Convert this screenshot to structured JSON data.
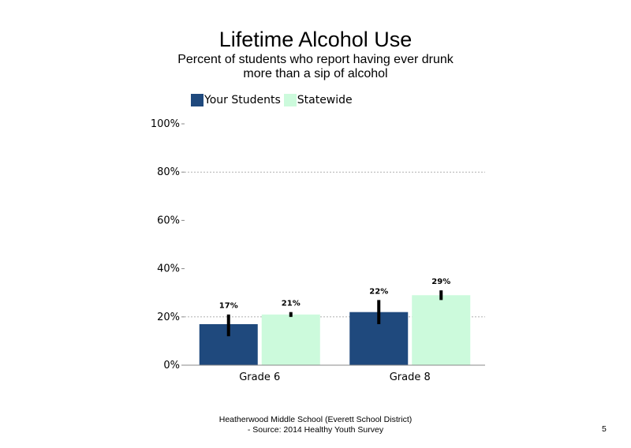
{
  "chart_data": {
    "type": "bar",
    "title": "Lifetime Alcohol Use",
    "subtitle": "Percent of students who report having ever drunk more than a sip of alcohol",
    "categories": [
      "Grade 6",
      "Grade 8"
    ],
    "series": [
      {
        "name": "Your Students",
        "values": [
          17,
          22
        ],
        "labels": [
          "17%",
          "22%"
        ],
        "error": [
          [
            12,
            21
          ],
          [
            17,
            27
          ]
        ],
        "color": "#1f497d"
      },
      {
        "name": "Statewide",
        "values": [
          21,
          29
        ],
        "labels": [
          "21%",
          "29%"
        ],
        "error": [
          [
            20,
            22
          ],
          [
            27,
            31
          ]
        ],
        "color": "#ccfadc"
      }
    ],
    "ylim": [
      0,
      100
    ],
    "yticks": [
      0,
      20,
      40,
      60,
      80,
      100
    ],
    "ytick_labels": [
      "0%",
      "20%",
      "40%",
      "60%",
      "80%",
      "100%"
    ],
    "gridlines": [
      20,
      80
    ],
    "legend_position": "top-left",
    "xlabel": "",
    "ylabel": ""
  },
  "footer": {
    "line1": "Heatherwood Middle School (Everett School District)",
    "line2": "- Source: 2014 Healthy Youth Survey"
  },
  "page_number": "5"
}
